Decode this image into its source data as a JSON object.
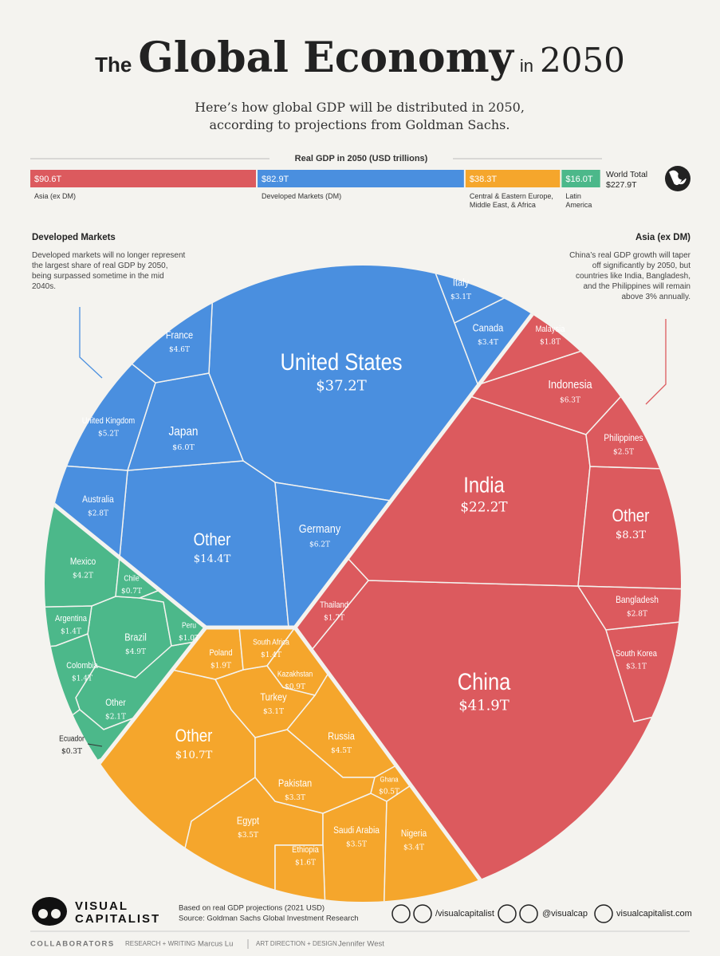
{
  "header": {
    "title_the": "The",
    "title_main": "Global Economy",
    "title_in": "in",
    "title_year": "2050",
    "subtitle": "Here’s how global GDP will be distributed in 2050, according to projections from Goldman Sachs."
  },
  "chart_data": [
    {
      "type": "bar",
      "title": "Real GDP in 2050 (USD trillions)",
      "categories": [
        "Asia (ex DM)",
        "Developed Markets (DM)",
        "Central & Eastern Europe, Middle East, & Africa",
        "Latin America"
      ],
      "values": [
        90.6,
        82.9,
        38.3,
        16.0
      ],
      "value_labels": [
        "$90.6T",
        "$82.9T",
        "$38.3T",
        "$16.0T"
      ],
      "colors": [
        "#dc5a5e",
        "#4a8fdf",
        "#f5a62c",
        "#4cb88a"
      ],
      "total": {
        "label": "World Total",
        "value": 227.9,
        "value_label": "$227.9T"
      }
    },
    {
      "type": "treemap",
      "series": [
        {
          "color": "#4a8fdf",
          "categories": [
            "United States",
            "Other",
            "Germany",
            "Japan",
            "United Kingdom",
            "France",
            "Canada",
            "Italy",
            "Australia"
          ],
          "values": [
            37.2,
            14.4,
            6.2,
            6.0,
            5.2,
            4.6,
            3.4,
            3.1,
            2.8
          ],
          "value_labels": [
            "$37.2T",
            "$14.4T",
            "$6.2T",
            "$6.0T",
            "$5.2T",
            "$4.6T",
            "$3.4T",
            "$3.1T",
            "$2.8T"
          ]
        },
        {
          "color": "#dc5a5e",
          "categories": [
            "China",
            "India",
            "Other",
            "Indonesia",
            "South Korea",
            "Bangladesh",
            "Philippines",
            "Malaysia",
            "Thailand"
          ],
          "values": [
            41.9,
            22.2,
            8.3,
            6.3,
            3.1,
            2.8,
            2.5,
            1.8,
            1.7
          ],
          "value_labels": [
            "$41.9T",
            "$22.2T",
            "$8.3T",
            "$6.3T",
            "$3.1T",
            "$2.8T",
            "$2.5T",
            "$1.8T",
            "$1.7T"
          ]
        },
        {
          "color": "#f5a62c",
          "categories": [
            "Other",
            "Russia",
            "Egypt",
            "Saudi Arabia",
            "Nigeria",
            "Pakistan",
            "Turkey",
            "Poland",
            "Ethiopia",
            "South Africa",
            "Kazakhstan",
            "Ghana"
          ],
          "values": [
            10.7,
            4.5,
            3.5,
            3.5,
            3.4,
            3.3,
            3.1,
            1.9,
            1.6,
            1.4,
            0.9,
            0.5
          ],
          "value_labels": [
            "$10.7T",
            "$4.5T",
            "$3.5T",
            "$3.5T",
            "$3.4T",
            "$3.3T",
            "$3.1T",
            "$1.9T",
            "$1.6T",
            "$1.4T",
            "$0.9T",
            "$0.5T"
          ]
        },
        {
          "color": "#4cb88a",
          "categories": [
            "Brazil",
            "Mexico",
            "Other",
            "Argentina",
            "Colombia",
            "Peru",
            "Chile",
            "Ecuador"
          ],
          "values": [
            4.9,
            4.2,
            2.1,
            1.4,
            1.4,
            1.0,
            0.7,
            0.3
          ],
          "value_labels": [
            "$4.9T",
            "$4.2T",
            "$2.1T",
            "$1.4T",
            "$1.4T",
            "$1.0T",
            "$0.7T",
            "$0.3T"
          ]
        }
      ],
      "annotations": [
        {
          "title": "Developed Markets",
          "text": "Developed markets will no longer represent the largest share of real GDP by 2050, being surpassed sometime in the mid 2040s."
        },
        {
          "title": "Asia (ex DM)",
          "text": "China’s real GDP growth will taper off significantly by 2050, but countries like India, Bangladesh, and the Philippines will remain above 3% annually."
        }
      ]
    }
  ],
  "footer": {
    "logo": [
      "VISUAL",
      "CAPITALIST"
    ],
    "notes": [
      "Based on real GDP projections (2021 USD)",
      "Source: Goldman Sachs Global Investment Research"
    ],
    "social": [
      "/visualcapitalist",
      "@visualcap",
      "visualcapitalist.com"
    ],
    "collaborators": {
      "label": "COLLABORATORS",
      "roles": [
        "RESEARCH + WRITING",
        "ART DIRECTION + DESIGN"
      ],
      "names": [
        "Marcus Lu",
        "Jennifer West"
      ]
    }
  }
}
